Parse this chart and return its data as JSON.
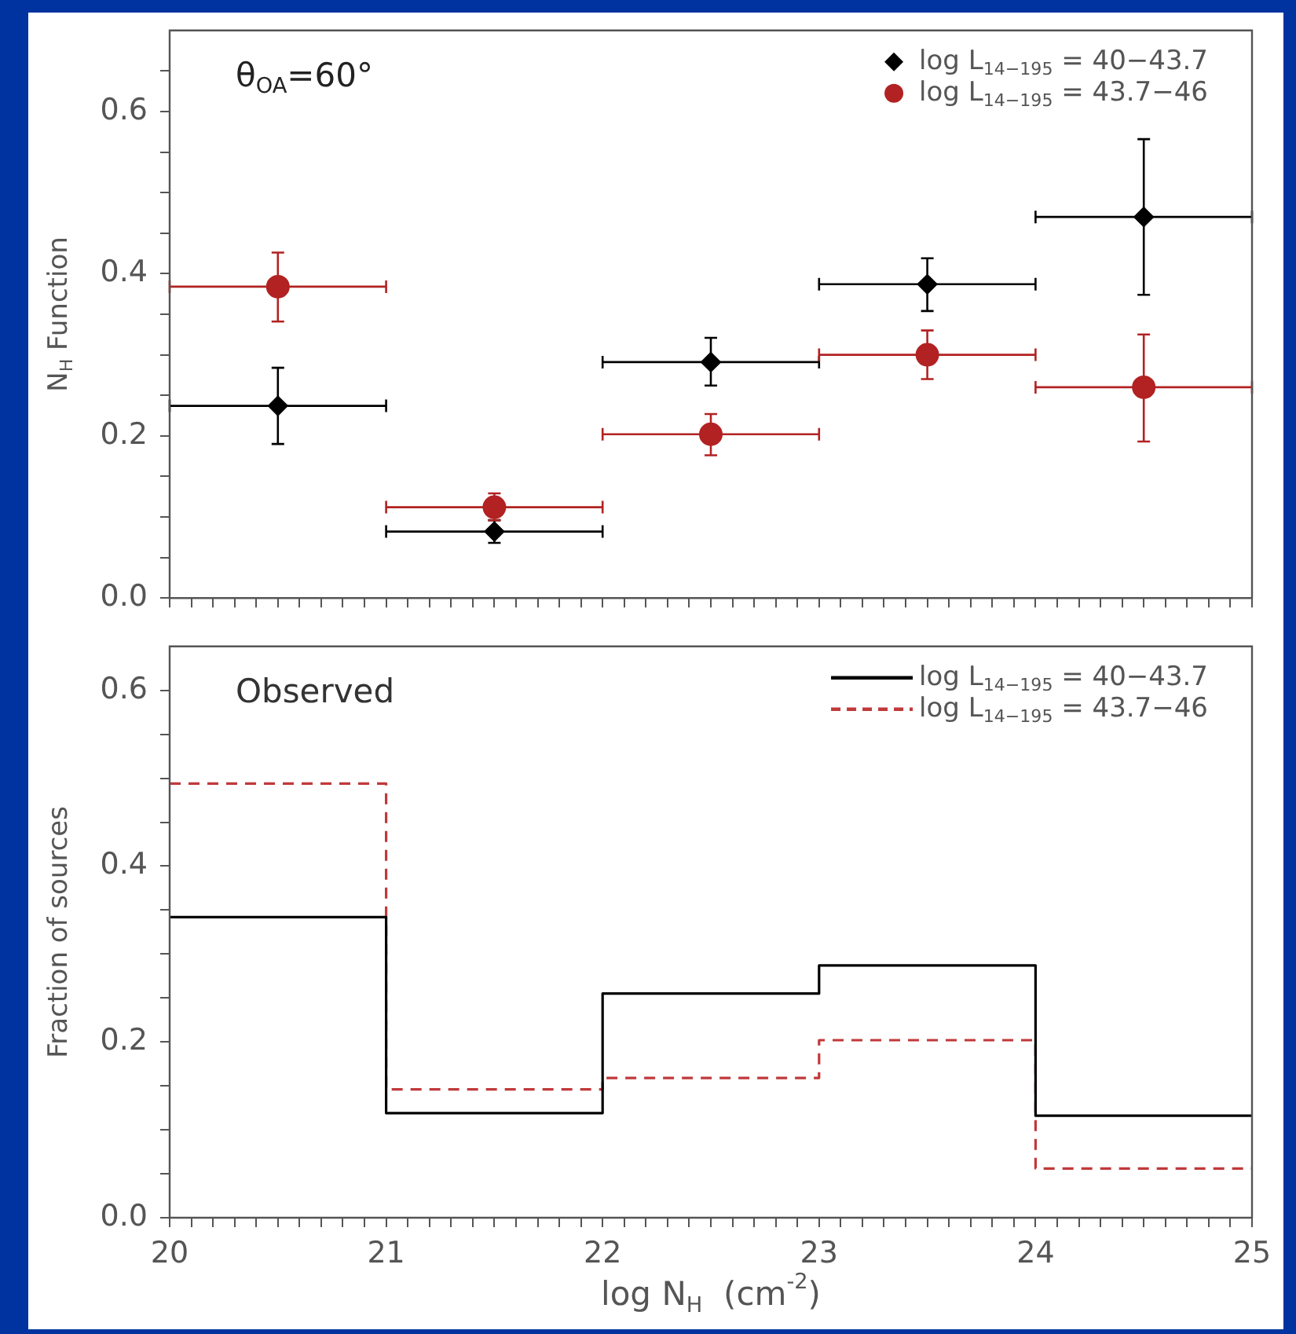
{
  "chart_data": [
    {
      "type": "scatter",
      "ylabel": "N$_{H}$ Function",
      "annotations": [
        "θ$_{OA}$=60°"
      ],
      "x": [
        20.5,
        21.5,
        22.5,
        23.5,
        24.5
      ],
      "xlim": [
        20,
        25
      ],
      "ylim": [
        0,
        0.7
      ],
      "xticks": [
        20,
        {
          "value": 20.1,
          "label": null
        },
        {
          "value": 20.2,
          "label": null
        },
        {
          "value": 20.3,
          "label": null
        },
        {
          "value": 20.4,
          "label": null
        },
        {
          "value": 20.5,
          "label": null
        },
        {
          "value": 20.6,
          "label": null
        },
        {
          "value": 20.7,
          "label": null
        },
        {
          "value": 20.8,
          "label": null
        },
        {
          "value": 20.9,
          "label": null
        },
        21,
        {
          "value": 21.1,
          "label": null
        },
        {
          "value": 21.2,
          "label": null
        },
        {
          "value": 21.3,
          "label": null
        },
        {
          "value": 21.4,
          "label": null
        },
        {
          "value": 21.5,
          "label": null
        },
        {
          "value": 21.6,
          "label": null
        },
        {
          "value": 21.7,
          "label": null
        },
        {
          "value": 21.8,
          "label": null
        },
        {
          "value": 21.9,
          "label": null
        },
        22,
        {
          "value": 22.1,
          "label": null
        },
        {
          "value": 22.2,
          "label": null
        },
        {
          "value": 22.3,
          "label": null
        },
        {
          "value": 22.4,
          "label": null
        },
        {
          "value": 22.5,
          "label": null
        },
        {
          "value": 22.6,
          "label": null
        },
        {
          "value": 22.7,
          "label": null
        },
        {
          "value": 22.8,
          "label": null
        },
        {
          "value": 22.9,
          "label": null
        },
        23,
        {
          "value": 23.1,
          "label": null
        },
        {
          "value": 23.2,
          "label": null
        },
        {
          "value": 23.3,
          "label": null
        },
        {
          "value": 23.4,
          "label": null
        },
        {
          "value": 23.5,
          "label": null
        },
        {
          "value": 23.6,
          "label": null
        },
        {
          "value": 23.7,
          "label": null
        },
        {
          "value": 23.8,
          "label": null
        },
        {
          "value": 23.9,
          "label": null
        },
        24,
        {
          "value": 24.1,
          "label": null
        },
        {
          "value": 24.2,
          "label": null
        },
        {
          "value": 24.3,
          "label": null
        },
        {
          "value": 24.4,
          "label": null
        },
        {
          "value": 24.5,
          "label": null
        },
        {
          "value": 24.6,
          "label": null
        },
        {
          "value": 24.7,
          "label": null
        },
        {
          "value": 24.8,
          "label": null
        },
        {
          "value": 24.9,
          "label": null
        },
        25
      ],
      "yticks": [
        {
          "value": 0,
          "label": "0.0"
        },
        {
          "value": 0.05,
          "label": null
        },
        {
          "value": 0.1,
          "label": null
        },
        {
          "value": 0.15,
          "label": null
        },
        {
          "value": 0.2,
          "label": "0.2"
        },
        {
          "value": 0.25,
          "label": null
        },
        {
          "value": 0.3,
          "label": null
        },
        {
          "value": 0.35,
          "label": null
        },
        {
          "value": 0.4,
          "label": "0.4"
        },
        {
          "value": 0.45,
          "label": null
        },
        {
          "value": 0.5,
          "label": null
        },
        {
          "value": 0.55,
          "label": null
        },
        {
          "value": 0.6,
          "label": "0.6"
        },
        {
          "value": 0.65,
          "label": null
        }
      ],
      "tick_labels": "y",
      "grid": false,
      "legend": "top right",
      "series": [
        {
          "name": "log L$_{14−195}$ = 40−43.7",
          "color": "#000000",
          "marker": "diamond",
          "values": [
            0.237,
            0.082,
            0.291,
            0.387,
            0.47
          ],
          "errors": [
            [
              0.19,
              0.284
            ],
            [
              0.068,
              0.096
            ],
            [
              0.262,
              0.321
            ],
            [
              0.354,
              0.419
            ],
            [
              0.374,
              0.566
            ]
          ],
          "xerrors": [
            0.5,
            0.5,
            0.5,
            0.5,
            0.5
          ]
        },
        {
          "name": "log L$_{14−195}$ = 43.7−46",
          "color": "#b22222",
          "marker": "circle",
          "values": [
            0.384,
            0.112,
            0.202,
            0.3,
            0.26
          ],
          "errors": [
            [
              0.341,
              0.426
            ],
            [
              0.096,
              0.129
            ],
            [
              0.176,
              0.227
            ],
            [
              0.27,
              0.33
            ],
            [
              0.193,
              0.325
            ]
          ],
          "xerrors": [
            0.5,
            0.5,
            0.5,
            0.5,
            0.5
          ]
        }
      ]
    },
    {
      "type": "histogram",
      "xlabel": "log N$_{H}$  (cm$^{-2}$)",
      "ylabel": "Fraction of sources",
      "annotations": [
        "Observed"
      ],
      "bins": [
        20,
        21,
        22,
        23,
        24,
        25
      ],
      "xlim": [
        20,
        25
      ],
      "ylim": [
        0,
        0.65
      ],
      "xticks": [
        20,
        {
          "value": 20.1,
          "label": null
        },
        {
          "value": 20.2,
          "label": null
        },
        {
          "value": 20.3,
          "label": null
        },
        {
          "value": 20.4,
          "label": null
        },
        {
          "value": 20.5,
          "label": null
        },
        {
          "value": 20.6,
          "label": null
        },
        {
          "value": 20.7,
          "label": null
        },
        {
          "value": 20.8,
          "label": null
        },
        {
          "value": 20.9,
          "label": null
        },
        21,
        {
          "value": 21.1,
          "label": null
        },
        {
          "value": 21.2,
          "label": null
        },
        {
          "value": 21.3,
          "label": null
        },
        {
          "value": 21.4,
          "label": null
        },
        {
          "value": 21.5,
          "label": null
        },
        {
          "value": 21.6,
          "label": null
        },
        {
          "value": 21.7,
          "label": null
        },
        {
          "value": 21.8,
          "label": null
        },
        {
          "value": 21.9,
          "label": null
        },
        22,
        {
          "value": 22.1,
          "label": null
        },
        {
          "value": 22.2,
          "label": null
        },
        {
          "value": 22.3,
          "label": null
        },
        {
          "value": 22.4,
          "label": null
        },
        {
          "value": 22.5,
          "label": null
        },
        {
          "value": 22.6,
          "label": null
        },
        {
          "value": 22.7,
          "label": null
        },
        {
          "value": 22.8,
          "label": null
        },
        {
          "value": 22.9,
          "label": null
        },
        23,
        {
          "value": 23.1,
          "label": null
        },
        {
          "value": 23.2,
          "label": null
        },
        {
          "value": 23.3,
          "label": null
        },
        {
          "value": 23.4,
          "label": null
        },
        {
          "value": 23.5,
          "label": null
        },
        {
          "value": 23.6,
          "label": null
        },
        {
          "value": 23.7,
          "label": null
        },
        {
          "value": 23.8,
          "label": null
        },
        {
          "value": 23.9,
          "label": null
        },
        24,
        {
          "value": 24.1,
          "label": null
        },
        {
          "value": 24.2,
          "label": null
        },
        {
          "value": 24.3,
          "label": null
        },
        {
          "value": 24.4,
          "label": null
        },
        {
          "value": 24.5,
          "label": null
        },
        {
          "value": 24.6,
          "label": null
        },
        {
          "value": 24.7,
          "label": null
        },
        {
          "value": 24.8,
          "label": null
        },
        {
          "value": 24.9,
          "label": null
        },
        25
      ],
      "yticks": [
        {
          "value": 0,
          "label": "0.0"
        },
        {
          "value": 0.05,
          "label": null
        },
        {
          "value": 0.1,
          "label": null
        },
        {
          "value": 0.15,
          "label": null
        },
        {
          "value": 0.2,
          "label": "0.2"
        },
        {
          "value": 0.25,
          "label": null
        },
        {
          "value": 0.3,
          "label": null
        },
        {
          "value": 0.35,
          "label": null
        },
        {
          "value": 0.4,
          "label": "0.4"
        },
        {
          "value": 0.45,
          "label": null
        },
        {
          "value": 0.5,
          "label": null
        },
        {
          "value": 0.55,
          "label": null
        },
        {
          "value": 0.6,
          "label": "0.6"
        }
      ],
      "grid": false,
      "legend": "top right",
      "series": [
        {
          "name": "log L$_{14−195}$ = 40−43.7",
          "color": "#000000",
          "line_style": "solid",
          "values": [
            0.342,
            0.119,
            0.255,
            0.287,
            0.116
          ]
        },
        {
          "name": "log L$_{14−195}$ = 43.7−46",
          "color": "#c0393b",
          "line_style": "dashed",
          "values": [
            0.494,
            0.146,
            0.159,
            0.202,
            0.056
          ]
        }
      ]
    }
  ]
}
